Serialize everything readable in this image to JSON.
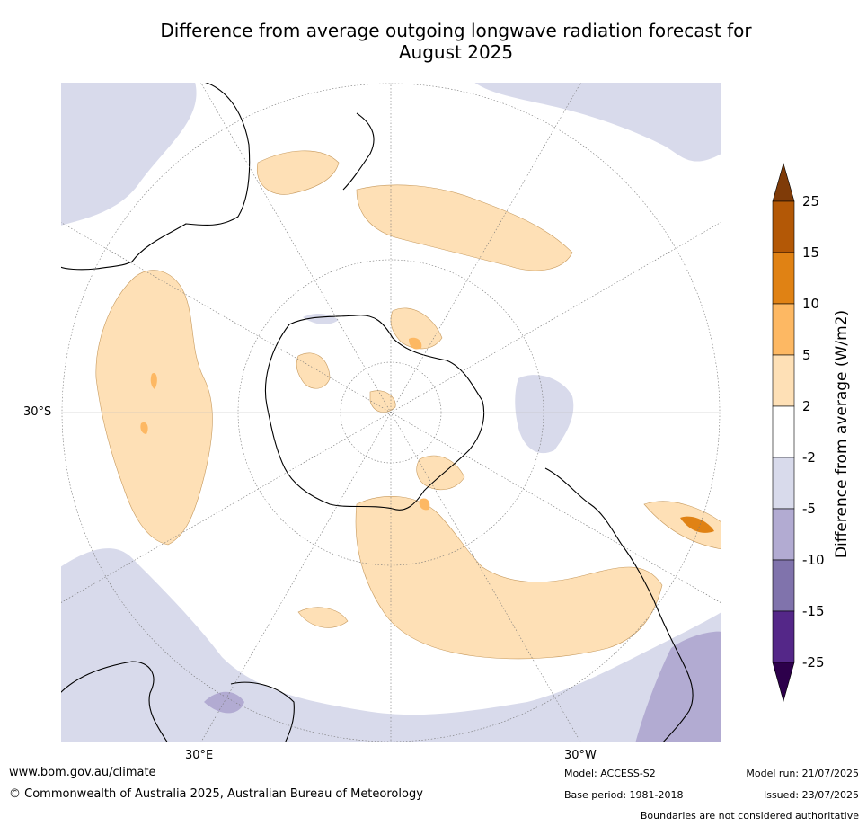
{
  "title_line1": "Difference from average outgoing longwave radiation forecast for",
  "title_line2": "August 2025",
  "map_labels": {
    "lat_30s": "30°S",
    "lon_30e": "30°E",
    "lon_30w": "30°W"
  },
  "colorbar": {
    "title": "Difference from average (W/m2)",
    "ticks": [
      "25",
      "15",
      "10",
      "5",
      "2",
      "-2",
      "-5",
      "-10",
      "-15",
      "-25"
    ],
    "colors": {
      "over": "#7f3b08",
      "c15_25": "#b35806",
      "c10_15": "#e08214",
      "c5_10": "#fdb863",
      "c2_5": "#fee0b6",
      "neutral": "#ffffff",
      "cm2_m5": "#d8daeb",
      "cm5_m10": "#b2abd2",
      "cm10_m15": "#8073ac",
      "cm15_m25": "#542788",
      "under": "#2d004b"
    }
  },
  "footer": {
    "website": "www.bom.gov.au/climate",
    "copyright": "© Commonwealth of Australia 2025, Australian Bureau of Meteorology",
    "model": "Model: ACCESS-S2",
    "base_period": "Base period: 1981-2018",
    "model_run": "Model run: 21/07/2025",
    "issued": "Issued: 23/07/2025",
    "disclaimer": "Boundaries are not considered authoritative"
  }
}
